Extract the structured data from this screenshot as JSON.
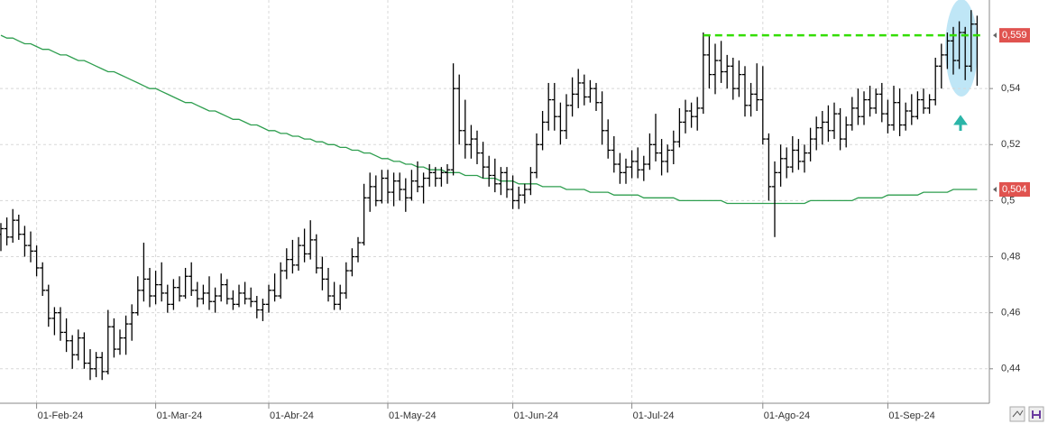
{
  "chart_data": {
    "type": "ohlc",
    "categories": [
      null,
      null,
      null,
      null,
      null,
      null,
      "01-Feb-24",
      null,
      null,
      null,
      null,
      null,
      null,
      null,
      null,
      null,
      null,
      null,
      null,
      null,
      null,
      null,
      null,
      null,
      null,
      null,
      "01-Mar-24",
      null,
      null,
      null,
      null,
      null,
      null,
      null,
      null,
      null,
      null,
      null,
      null,
      null,
      null,
      null,
      null,
      null,
      null,
      "01-Abr-24",
      null,
      null,
      null,
      null,
      null,
      null,
      null,
      null,
      null,
      null,
      null,
      null,
      null,
      null,
      null,
      null,
      null,
      null,
      null,
      "01-May-24",
      null,
      null,
      null,
      null,
      null,
      null,
      null,
      null,
      null,
      null,
      null,
      null,
      null,
      null,
      null,
      null,
      null,
      null,
      null,
      null,
      "01-Jun-24",
      null,
      null,
      null,
      null,
      null,
      null,
      null,
      null,
      null,
      null,
      null,
      null,
      null,
      null,
      null,
      null,
      null,
      null,
      null,
      "01-Jul-24",
      null,
      null,
      null,
      null,
      null,
      null,
      null,
      null,
      null,
      null,
      null,
      null,
      null,
      null,
      null,
      null,
      null,
      null,
      null,
      null,
      null,
      "01-Ago-24",
      null,
      null,
      null,
      null,
      null,
      null,
      null,
      null,
      null,
      null,
      null,
      null,
      null,
      null,
      null,
      null,
      null,
      null,
      null,
      null,
      "01-Sep-24",
      null,
      null,
      null,
      null,
      null,
      null,
      null,
      null,
      null,
      null,
      null,
      null,
      null,
      null,
      null
    ],
    "ohlc": [
      [
        0.488,
        0.492,
        0.482,
        0.49
      ],
      [
        0.49,
        0.494,
        0.484,
        0.487
      ],
      [
        0.487,
        0.497,
        0.485,
        0.493
      ],
      [
        0.493,
        0.495,
        0.486,
        0.488
      ],
      [
        0.488,
        0.491,
        0.48,
        0.484
      ],
      [
        0.484,
        0.489,
        0.478,
        0.482
      ],
      [
        0.482,
        0.484,
        0.473,
        0.476
      ],
      [
        0.476,
        0.478,
        0.466,
        0.468
      ],
      [
        0.468,
        0.47,
        0.455,
        0.458
      ],
      [
        0.458,
        0.462,
        0.452,
        0.46
      ],
      [
        0.46,
        0.462,
        0.45,
        0.453
      ],
      [
        0.453,
        0.458,
        0.446,
        0.45
      ],
      [
        0.45,
        0.452,
        0.44,
        0.445
      ],
      [
        0.445,
        0.454,
        0.443,
        0.451
      ],
      [
        0.451,
        0.453,
        0.44,
        0.442
      ],
      [
        0.442,
        0.447,
        0.436,
        0.44
      ],
      [
        0.44,
        0.446,
        0.437,
        0.444
      ],
      [
        0.444,
        0.446,
        0.436,
        0.439
      ],
      [
        0.439,
        0.461,
        0.438,
        0.455
      ],
      [
        0.455,
        0.458,
        0.444,
        0.447
      ],
      [
        0.447,
        0.454,
        0.445,
        0.451
      ],
      [
        0.451,
        0.459,
        0.445,
        0.456
      ],
      [
        0.456,
        0.463,
        0.45,
        0.46
      ],
      [
        0.46,
        0.473,
        0.459,
        0.468
      ],
      [
        0.468,
        0.485,
        0.464,
        0.472
      ],
      [
        0.472,
        0.476,
        0.462,
        0.466
      ],
      [
        0.466,
        0.475,
        0.463,
        0.47
      ],
      [
        0.47,
        0.478,
        0.464,
        0.467
      ],
      [
        0.467,
        0.47,
        0.46,
        0.463
      ],
      [
        0.463,
        0.472,
        0.461,
        0.469
      ],
      [
        0.469,
        0.473,
        0.464,
        0.466
      ],
      [
        0.466,
        0.476,
        0.465,
        0.473
      ],
      [
        0.473,
        0.478,
        0.466,
        0.468
      ],
      [
        0.468,
        0.471,
        0.462,
        0.465
      ],
      [
        0.465,
        0.47,
        0.463,
        0.467
      ],
      [
        0.467,
        0.473,
        0.461,
        0.464
      ],
      [
        0.464,
        0.469,
        0.46,
        0.466
      ],
      [
        0.466,
        0.474,
        0.464,
        0.47
      ],
      [
        0.47,
        0.472,
        0.463,
        0.465
      ],
      [
        0.465,
        0.468,
        0.461,
        0.463
      ],
      [
        0.463,
        0.47,
        0.462,
        0.467
      ],
      [
        0.467,
        0.471,
        0.463,
        0.465
      ],
      [
        0.465,
        0.469,
        0.462,
        0.464
      ],
      [
        0.464,
        0.466,
        0.458,
        0.461
      ],
      [
        0.461,
        0.465,
        0.457,
        0.463
      ],
      [
        0.463,
        0.47,
        0.46,
        0.468
      ],
      [
        0.468,
        0.474,
        0.464,
        0.466
      ],
      [
        0.466,
        0.478,
        0.465,
        0.475
      ],
      [
        0.475,
        0.483,
        0.472,
        0.479
      ],
      [
        0.479,
        0.486,
        0.474,
        0.477
      ],
      [
        0.477,
        0.487,
        0.475,
        0.484
      ],
      [
        0.484,
        0.49,
        0.478,
        0.481
      ],
      [
        0.481,
        0.493,
        0.479,
        0.486
      ],
      [
        0.486,
        0.488,
        0.474,
        0.476
      ],
      [
        0.476,
        0.48,
        0.468,
        0.472
      ],
      [
        0.472,
        0.476,
        0.464,
        0.466
      ],
      [
        0.466,
        0.471,
        0.461,
        0.463
      ],
      [
        0.463,
        0.47,
        0.461,
        0.467
      ],
      [
        0.467,
        0.478,
        0.465,
        0.475
      ],
      [
        0.475,
        0.483,
        0.473,
        0.48
      ],
      [
        0.48,
        0.487,
        0.478,
        0.485
      ],
      [
        0.485,
        0.506,
        0.484,
        0.501
      ],
      [
        0.501,
        0.51,
        0.496,
        0.505
      ],
      [
        0.505,
        0.509,
        0.498,
        0.5
      ],
      [
        0.5,
        0.511,
        0.499,
        0.508
      ],
      [
        0.508,
        0.511,
        0.499,
        0.503
      ],
      [
        0.503,
        0.51,
        0.498,
        0.507
      ],
      [
        0.507,
        0.51,
        0.5,
        0.504
      ],
      [
        0.504,
        0.508,
        0.496,
        0.501
      ],
      [
        0.501,
        0.511,
        0.5,
        0.507
      ],
      [
        0.507,
        0.514,
        0.503,
        0.505
      ],
      [
        0.505,
        0.51,
        0.499,
        0.508
      ],
      [
        0.508,
        0.513,
        0.505,
        0.51
      ],
      [
        0.51,
        0.512,
        0.505,
        0.508
      ],
      [
        0.508,
        0.512,
        0.505,
        0.51
      ],
      [
        0.51,
        0.513,
        0.506,
        0.511
      ],
      [
        0.511,
        0.549,
        0.509,
        0.54
      ],
      [
        0.54,
        0.545,
        0.52,
        0.525
      ],
      [
        0.525,
        0.536,
        0.515,
        0.52
      ],
      [
        0.52,
        0.527,
        0.515,
        0.522
      ],
      [
        0.522,
        0.525,
        0.513,
        0.517
      ],
      [
        0.517,
        0.521,
        0.508,
        0.512
      ],
      [
        0.512,
        0.516,
        0.505,
        0.509
      ],
      [
        0.509,
        0.515,
        0.503,
        0.506
      ],
      [
        0.506,
        0.512,
        0.502,
        0.51
      ],
      [
        0.51,
        0.512,
        0.501,
        0.504
      ],
      [
        0.504,
        0.509,
        0.497,
        0.5
      ],
      [
        0.5,
        0.505,
        0.497,
        0.502
      ],
      [
        0.502,
        0.506,
        0.499,
        0.504
      ],
      [
        0.504,
        0.512,
        0.502,
        0.51
      ],
      [
        0.51,
        0.524,
        0.508,
        0.52
      ],
      [
        0.52,
        0.532,
        0.518,
        0.528
      ],
      [
        0.528,
        0.542,
        0.525,
        0.536
      ],
      [
        0.536,
        0.542,
        0.525,
        0.53
      ],
      [
        0.53,
        0.535,
        0.52,
        0.525
      ],
      [
        0.525,
        0.538,
        0.522,
        0.534
      ],
      [
        0.534,
        0.544,
        0.53,
        0.538
      ],
      [
        0.538,
        0.547,
        0.533,
        0.542
      ],
      [
        0.542,
        0.545,
        0.534,
        0.537
      ],
      [
        0.537,
        0.543,
        0.535,
        0.54
      ],
      [
        0.54,
        0.542,
        0.532,
        0.535
      ],
      [
        0.535,
        0.539,
        0.52,
        0.525
      ],
      [
        0.525,
        0.529,
        0.515,
        0.518
      ],
      [
        0.518,
        0.523,
        0.51,
        0.513
      ],
      [
        0.513,
        0.517,
        0.506,
        0.51
      ],
      [
        0.51,
        0.515,
        0.506,
        0.512
      ],
      [
        0.512,
        0.518,
        0.508,
        0.514
      ],
      [
        0.514,
        0.519,
        0.508,
        0.511
      ],
      [
        0.511,
        0.516,
        0.507,
        0.513
      ],
      [
        0.513,
        0.524,
        0.511,
        0.52
      ],
      [
        0.52,
        0.531,
        0.514,
        0.517
      ],
      [
        0.517,
        0.522,
        0.509,
        0.514
      ],
      [
        0.514,
        0.52,
        0.51,
        0.518
      ],
      [
        0.518,
        0.525,
        0.513,
        0.521
      ],
      [
        0.521,
        0.533,
        0.519,
        0.528
      ],
      [
        0.528,
        0.536,
        0.524,
        0.532
      ],
      [
        0.532,
        0.535,
        0.526,
        0.53
      ],
      [
        0.53,
        0.537,
        0.525,
        0.533
      ],
      [
        0.533,
        0.56,
        0.531,
        0.552
      ],
      [
        0.552,
        0.559,
        0.54,
        0.545
      ],
      [
        0.545,
        0.556,
        0.538,
        0.55
      ],
      [
        0.55,
        0.557,
        0.542,
        0.546
      ],
      [
        0.546,
        0.552,
        0.54,
        0.548
      ],
      [
        0.548,
        0.551,
        0.536,
        0.54
      ],
      [
        0.54,
        0.55,
        0.537,
        0.545
      ],
      [
        0.545,
        0.548,
        0.53,
        0.534
      ],
      [
        0.534,
        0.542,
        0.53,
        0.538
      ],
      [
        0.538,
        0.549,
        0.532,
        0.536
      ],
      [
        0.536,
        0.548,
        0.52,
        0.522
      ],
      [
        0.522,
        0.524,
        0.5,
        0.505
      ],
      [
        0.505,
        0.514,
        0.487,
        0.51
      ],
      [
        0.51,
        0.52,
        0.505,
        0.515
      ],
      [
        0.515,
        0.519,
        0.508,
        0.512
      ],
      [
        0.512,
        0.523,
        0.51,
        0.518
      ],
      [
        0.518,
        0.522,
        0.511,
        0.514
      ],
      [
        0.514,
        0.52,
        0.51,
        0.517
      ],
      [
        0.517,
        0.526,
        0.514,
        0.522
      ],
      [
        0.522,
        0.53,
        0.518,
        0.526
      ],
      [
        0.526,
        0.532,
        0.52,
        0.528
      ],
      [
        0.528,
        0.534,
        0.521,
        0.525
      ],
      [
        0.525,
        0.535,
        0.522,
        0.531
      ],
      [
        0.531,
        0.533,
        0.518,
        0.522
      ],
      [
        0.522,
        0.53,
        0.519,
        0.527
      ],
      [
        0.527,
        0.537,
        0.525,
        0.533
      ],
      [
        0.533,
        0.54,
        0.527,
        0.53
      ],
      [
        0.53,
        0.539,
        0.527,
        0.536
      ],
      [
        0.536,
        0.541,
        0.53,
        0.533
      ],
      [
        0.533,
        0.54,
        0.531,
        0.538
      ],
      [
        0.538,
        0.542,
        0.528,
        0.531
      ],
      [
        0.531,
        0.536,
        0.524,
        0.527
      ],
      [
        0.527,
        0.541,
        0.525,
        0.535
      ],
      [
        0.535,
        0.54,
        0.523,
        0.527
      ],
      [
        0.527,
        0.535,
        0.525,
        0.532
      ],
      [
        0.532,
        0.538,
        0.527,
        0.53
      ],
      [
        0.53,
        0.539,
        0.529,
        0.536
      ],
      [
        0.536,
        0.54,
        0.531,
        0.533
      ],
      [
        0.533,
        0.538,
        0.531,
        0.536
      ],
      [
        0.536,
        0.551,
        0.534,
        0.548
      ],
      [
        0.548,
        0.556,
        0.54,
        0.552
      ],
      [
        0.552,
        0.56,
        0.547,
        0.557
      ],
      [
        0.557,
        0.562,
        0.545,
        0.55
      ],
      [
        0.55,
        0.564,
        0.547,
        0.56
      ],
      [
        0.56,
        0.562,
        0.543,
        0.548
      ],
      [
        0.548,
        0.568,
        0.546,
        0.563
      ],
      [
        0.563,
        0.566,
        0.541,
        0.559
      ]
    ],
    "bar_color": "#000000",
    "ma": {
      "color": "#2e9e4f",
      "values": [
        0.559,
        0.558,
        0.558,
        0.557,
        0.556,
        0.556,
        0.555,
        0.554,
        0.554,
        0.553,
        0.552,
        0.552,
        0.551,
        0.55,
        0.55,
        0.549,
        0.548,
        0.547,
        0.546,
        0.546,
        0.545,
        0.544,
        0.543,
        0.542,
        0.541,
        0.54,
        0.54,
        0.539,
        0.538,
        0.537,
        0.536,
        0.535,
        0.535,
        0.534,
        0.533,
        0.532,
        0.532,
        0.531,
        0.53,
        0.529,
        0.529,
        0.528,
        0.527,
        0.527,
        0.526,
        0.525,
        0.525,
        0.524,
        0.524,
        0.523,
        0.523,
        0.522,
        0.522,
        0.521,
        0.521,
        0.52,
        0.52,
        0.519,
        0.519,
        0.518,
        0.518,
        0.517,
        0.517,
        0.516,
        0.515,
        0.515,
        0.514,
        0.514,
        0.513,
        0.513,
        0.512,
        0.512,
        0.511,
        0.511,
        0.511,
        0.51,
        0.51,
        0.51,
        0.509,
        0.509,
        0.509,
        0.508,
        0.508,
        0.508,
        0.507,
        0.507,
        0.507,
        0.506,
        0.506,
        0.506,
        0.506,
        0.505,
        0.505,
        0.505,
        0.505,
        0.504,
        0.504,
        0.504,
        0.504,
        0.503,
        0.503,
        0.503,
        0.503,
        0.502,
        0.502,
        0.502,
        0.502,
        0.502,
        0.501,
        0.501,
        0.501,
        0.501,
        0.501,
        0.501,
        0.5,
        0.5,
        0.5,
        0.5,
        0.5,
        0.5,
        0.5,
        0.5,
        0.499,
        0.499,
        0.499,
        0.499,
        0.499,
        0.499,
        0.499,
        0.499,
        0.499,
        0.499,
        0.499,
        0.499,
        0.499,
        0.499,
        0.5,
        0.5,
        0.5,
        0.5,
        0.5,
        0.5,
        0.5,
        0.5,
        0.501,
        0.501,
        0.501,
        0.501,
        0.501,
        0.502,
        0.502,
        0.502,
        0.502,
        0.502,
        0.502,
        0.503,
        0.503,
        0.503,
        0.503,
        0.503,
        0.504,
        0.504,
        0.504,
        0.504,
        0.504
      ]
    },
    "resistance": {
      "value": 0.559,
      "color": "#33dd00"
    },
    "price_markers": [
      {
        "value": 0.559,
        "label": "0,559",
        "color": "#e0534f"
      },
      {
        "value": 0.504,
        "label": "0,504",
        "color": "#e0534f"
      }
    ],
    "ylim": [
      0.4277,
      0.5716
    ],
    "yticks": [
      {
        "value": 0.44,
        "label": "0,44"
      },
      {
        "value": 0.46,
        "label": "0,46"
      },
      {
        "value": 0.48,
        "label": "0,48"
      },
      {
        "value": 0.5,
        "label": "0,5"
      },
      {
        "value": 0.52,
        "label": "0,52"
      },
      {
        "value": 0.54,
        "label": "0,54"
      }
    ],
    "grid": true
  }
}
